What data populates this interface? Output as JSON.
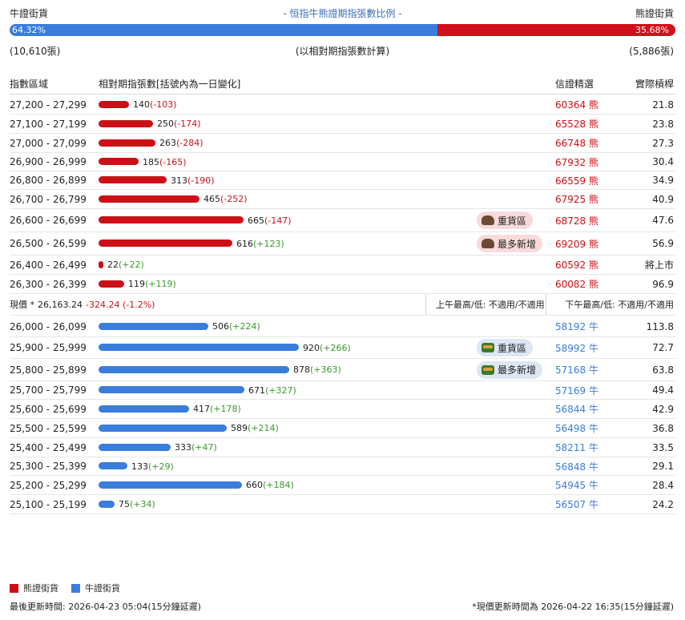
{
  "header": {
    "bull_label": "牛證街貨",
    "title": "- 恒指牛熊證期指張數比例 -",
    "bear_label": "熊證街貨",
    "bull_pct_text": "64.32%",
    "bear_pct_text": "35.68%",
    "bull_share": 0.6432,
    "bull_count": "(10,610張)",
    "note": "(以相對期指張數計算)",
    "bear_count": "(5,886張)"
  },
  "columns": {
    "range": "指數區域",
    "contracts": "相對期指張數[括號內為一日變化]",
    "code": "信證精選",
    "leverage": "實際槓桿"
  },
  "bear_rows": [
    {
      "range": "27,200 - 27,299",
      "value": 140,
      "value_text": "140",
      "delta": "(-103)",
      "code": "60364 熊",
      "leverage": "21.8",
      "badge": ""
    },
    {
      "range": "27,100 - 27,199",
      "value": 250,
      "value_text": "250",
      "delta": "(-174)",
      "code": "65528 熊",
      "leverage": "23.8",
      "badge": ""
    },
    {
      "range": "27,000 - 27,099",
      "value": 263,
      "value_text": "263",
      "delta": "(-284)",
      "code": "66748 熊",
      "leverage": "27.3",
      "badge": ""
    },
    {
      "range": "26,900 - 26,999",
      "value": 185,
      "value_text": "185",
      "delta": "(-165)",
      "code": "67932 熊",
      "leverage": "30.4",
      "badge": ""
    },
    {
      "range": "26,800 - 26,899",
      "value": 313,
      "value_text": "313",
      "delta": "(-190)",
      "code": "66559 熊",
      "leverage": "34.9",
      "badge": ""
    },
    {
      "range": "26,700 - 26,799",
      "value": 465,
      "value_text": "465",
      "delta": "(-252)",
      "code": "67925 熊",
      "leverage": "40.9",
      "badge": ""
    },
    {
      "range": "26,600 - 26,699",
      "value": 665,
      "value_text": "665",
      "delta": "(-147)",
      "code": "68728 熊",
      "leverage": "47.6",
      "badge": "重貨區"
    },
    {
      "range": "26,500 - 26,599",
      "value": 616,
      "value_text": "616",
      "delta": "(+123)",
      "code": "69209 熊",
      "leverage": "56.9",
      "badge": "最多新增"
    },
    {
      "range": "26,400 - 26,499",
      "value": 22,
      "value_text": "22",
      "delta": "(+22)",
      "code": "60592 熊",
      "leverage": "將上市",
      "badge": ""
    },
    {
      "range": "26,300 - 26,399",
      "value": 119,
      "value_text": "119",
      "delta": "(+119)",
      "code": "60082 熊",
      "leverage": "96.9",
      "badge": ""
    }
  ],
  "current": {
    "label": "現價 *",
    "price": "26,163.24",
    "change": "-324.24 (-1.2%)",
    "am": "上午最高/低: 不適用/不適用",
    "pm": "下午最高/低: 不適用/不適用"
  },
  "bull_rows": [
    {
      "range": "26,000 - 26,099",
      "value": 506,
      "value_text": "506",
      "delta": "(+224)",
      "code": "58192 牛",
      "leverage": "113.8",
      "badge": ""
    },
    {
      "range": "25,900 - 25,999",
      "value": 920,
      "value_text": "920",
      "delta": "(+266)",
      "code": "58992 牛",
      "leverage": "72.7",
      "badge": "重貨區"
    },
    {
      "range": "25,800 - 25,899",
      "value": 878,
      "value_text": "878",
      "delta": "(+363)",
      "code": "57168 牛",
      "leverage": "63.8",
      "badge": "最多新增"
    },
    {
      "range": "25,700 - 25,799",
      "value": 671,
      "value_text": "671",
      "delta": "(+327)",
      "code": "57169 牛",
      "leverage": "49.4",
      "badge": ""
    },
    {
      "range": "25,600 - 25,699",
      "value": 417,
      "value_text": "417",
      "delta": "(+178)",
      "code": "56844 牛",
      "leverage": "42.9",
      "badge": ""
    },
    {
      "range": "25,500 - 25,599",
      "value": 589,
      "value_text": "589",
      "delta": "(+214)",
      "code": "56498 牛",
      "leverage": "36.8",
      "badge": ""
    },
    {
      "range": "25,400 - 25,499",
      "value": 333,
      "value_text": "333",
      "delta": "(+47)",
      "code": "58211 牛",
      "leverage": "33.5",
      "badge": ""
    },
    {
      "range": "25,300 - 25,399",
      "value": 133,
      "value_text": "133",
      "delta": "(+29)",
      "code": "56848 牛",
      "leverage": "29.1",
      "badge": ""
    },
    {
      "range": "25,200 - 25,299",
      "value": 660,
      "value_text": "660",
      "delta": "(+184)",
      "code": "54945 牛",
      "leverage": "28.4",
      "badge": ""
    },
    {
      "range": "25,100 - 25,199",
      "value": 75,
      "value_text": "75",
      "delta": "(+34)",
      "code": "56507 牛",
      "leverage": "24.2",
      "badge": ""
    }
  ],
  "legend": {
    "bear": "熊證街貨",
    "bull": "牛證街貨"
  },
  "footer": {
    "left": "最後更新時間: 2026-04-23 05:04(15分鐘延遲)",
    "right": "*現價更新時間為 2026-04-22 16:35(15分鐘延遲)"
  },
  "colors": {
    "bear": "#cc1017",
    "bull": "#3a7ddc",
    "increase": "#3a9a2c"
  }
}
